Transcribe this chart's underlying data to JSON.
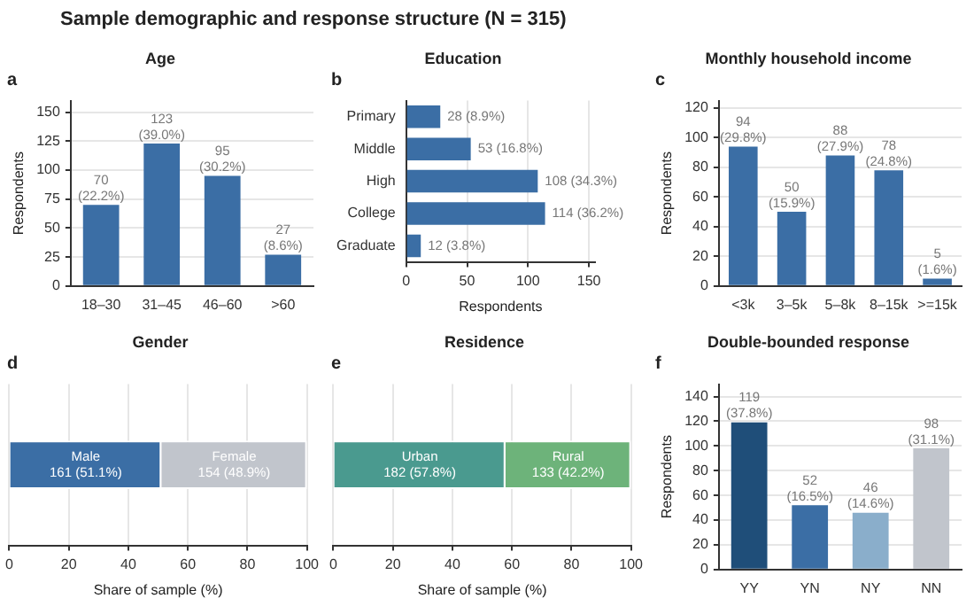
{
  "chart_data": [
    {
      "type": "other",
      "title": "Sample demographic and response structure (N = 315)"
    },
    {
      "type": "bar",
      "title": "Age",
      "ylabel": "Respondents",
      "annotations": [
        "a"
      ],
      "categories": [
        "18–30",
        "31–45",
        "46–60",
        ">60"
      ],
      "values": [
        70,
        123,
        95,
        27
      ],
      "color": "#3b6ea5",
      "value_labels": [
        "70\n(22.2%)",
        "123\n(39.0%)",
        "95\n(30.2%)",
        "27\n(8.6%)"
      ],
      "ylim": [
        0,
        160
      ],
      "yticks": [
        0,
        25,
        50,
        75,
        100,
        125,
        150
      ],
      "grid": "y",
      "legend": false
    },
    {
      "type": "bar",
      "orientation": "horizontal",
      "title": "Education",
      "xlabel": "Respondents",
      "annotations": [
        "b"
      ],
      "categories": [
        "Primary",
        "Middle",
        "High",
        "College",
        "Graduate"
      ],
      "values": [
        28,
        53,
        108,
        114,
        12
      ],
      "color": "#3b6ea5",
      "value_labels": [
        "28 (8.9%)",
        "53 (16.8%)",
        "108 (34.3%)",
        "114 (36.2%)",
        "12 (3.8%)"
      ],
      "xlim": [
        0,
        155
      ],
      "xticks": [
        0,
        50,
        100,
        150
      ],
      "grid": "x",
      "legend": false
    },
    {
      "type": "bar",
      "title": "Monthly household income",
      "ylabel": "Respondents",
      "annotations": [
        "c"
      ],
      "categories": [
        "<3k",
        "3–5k",
        "5–8k",
        "8–15k",
        ">=15k"
      ],
      "values": [
        94,
        50,
        88,
        78,
        5
      ],
      "color": "#3b6ea5",
      "value_labels": [
        "94\n(29.8%)",
        "50\n(15.9%)",
        "88\n(27.9%)",
        "78\n(24.8%)",
        "5\n(1.6%)"
      ],
      "ylim": [
        0,
        125
      ],
      "yticks": [
        0,
        20,
        40,
        60,
        80,
        100,
        120
      ],
      "grid": "y",
      "legend": false
    },
    {
      "type": "bar",
      "orientation": "horizontal",
      "stacked": true,
      "title": "Gender",
      "xlabel": "Share of sample (%)",
      "annotations": [
        "d"
      ],
      "categories": [
        null
      ],
      "series": [
        {
          "name": "Male",
          "color": "#3b6ea5",
          "values": [
            51.1
          ],
          "value_labels": [
            "161 (51.1%)"
          ]
        },
        {
          "name": "Female",
          "color": "#c1c5cc",
          "values": [
            48.9
          ],
          "value_labels": [
            "154 (48.9%)"
          ]
        }
      ],
      "xlim": [
        0,
        100
      ],
      "xticks": [
        0,
        20,
        40,
        60,
        80,
        100
      ],
      "grid": "x",
      "legend": false
    },
    {
      "type": "bar",
      "orientation": "horizontal",
      "stacked": true,
      "title": "Residence",
      "xlabel": "Share of sample (%)",
      "annotations": [
        "e"
      ],
      "categories": [
        null
      ],
      "series": [
        {
          "name": "Urban",
          "color": "#4a9a8f",
          "values": [
            57.8
          ],
          "value_labels": [
            "182 (57.8%)"
          ]
        },
        {
          "name": "Rural",
          "color": "#6db37a",
          "values": [
            42.2
          ],
          "value_labels": [
            "133 (42.2%)"
          ]
        }
      ],
      "xlim": [
        0,
        100
      ],
      "xticks": [
        0,
        20,
        40,
        60,
        80,
        100
      ],
      "grid": "x",
      "legend": false
    },
    {
      "type": "bar",
      "title": "Double-bounded response",
      "ylabel": "Respondents",
      "annotations": [
        "f"
      ],
      "categories": [
        "YY",
        "YN",
        "NY",
        "NN"
      ],
      "values": [
        119,
        52,
        46,
        98
      ],
      "colors": [
        "#1f4e79",
        "#3b6ea5",
        "#8aaecb",
        "#c1c5cc"
      ],
      "value_labels": [
        "119\n(37.8%)",
        "52\n(16.5%)",
        "46\n(14.6%)",
        "98\n(31.1%)"
      ],
      "ylim": [
        0,
        150
      ],
      "yticks": [
        0,
        20,
        40,
        60,
        80,
        100,
        120,
        140
      ],
      "grid": "y",
      "legend": false
    }
  ]
}
